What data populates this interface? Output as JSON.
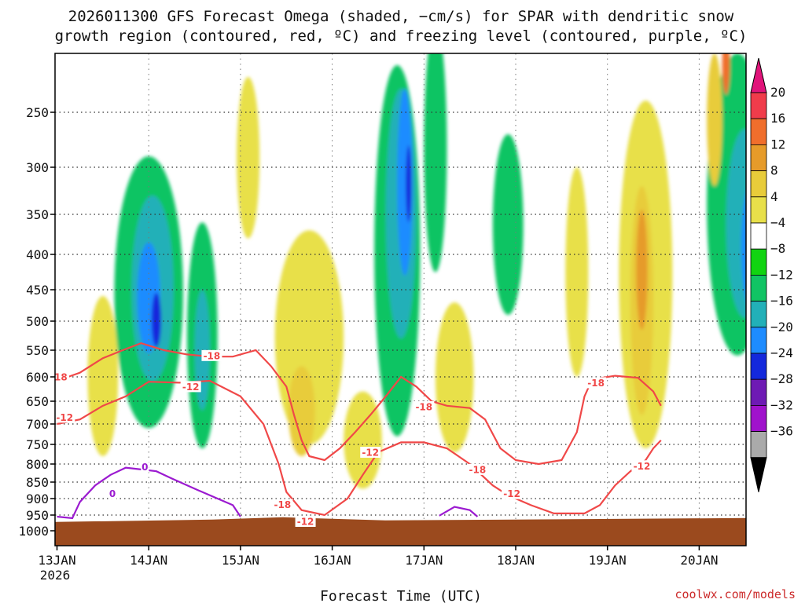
{
  "chart_data": {
    "type": "heatmap",
    "title_line1": "2026011300 GFS Forecast Omega (shaded, −cm/s) for SPAR with dendritic snow",
    "title_line2": "growth region (contoured, red, ºC) and freezing level (contoured, purple, ºC)",
    "xlabel": "Forecast Time (UTC)",
    "credit": "coolwx.com/models",
    "year_label": "2026",
    "x_ticks": [
      "13JAN",
      "14JAN",
      "15JAN",
      "16JAN",
      "17JAN",
      "18JAN",
      "19JAN",
      "20JAN"
    ],
    "x_range_hours": [
      0,
      180
    ],
    "y_ticks": [
      250,
      300,
      350,
      400,
      450,
      500,
      550,
      600,
      650,
      700,
      750,
      800,
      850,
      900,
      950,
      1000
    ],
    "y_range_hpa": [
      200,
      1020
    ],
    "ground_top_hpa": 962,
    "colorbar_levels": [
      20,
      16,
      12,
      8,
      4,
      -4,
      -8,
      -12,
      -16,
      -20,
      -24,
      -28,
      -32,
      -36
    ],
    "colorbar_colors": [
      "#f03c4b",
      "#f06e2c",
      "#e69b2a",
      "#e8cc3a",
      "#e8e04a",
      "#ffffff",
      "#11d411",
      "#11c464",
      "#22b0b8",
      "#1e8cff",
      "#1428dc",
      "#6e1ab4",
      "#a012cc",
      "#aaaaaa"
    ],
    "colorbar_top_arrow_color": "#e0147a",
    "colorbar_bottom_arrow_color": "#000000",
    "ground_color": "#9b4a1e",
    "dgz_color": "#f04848",
    "freezing_color": "#9b1ad0",
    "dgz_contour_labels": [
      {
        "text": "-18",
        "hour": 0.5,
        "hpa": 600
      },
      {
        "text": "-12",
        "hour": 2,
        "hpa": 685
      },
      {
        "text": "-18",
        "hour": 40.5,
        "hpa": 560
      },
      {
        "text": "-12",
        "hour": 35,
        "hpa": 620
      },
      {
        "text": "-18",
        "hour": 59,
        "hpa": 918
      },
      {
        "text": "-12",
        "hour": 65,
        "hpa": 970
      },
      {
        "text": "-18",
        "hour": 96,
        "hpa": 662
      },
      {
        "text": "-12",
        "hour": 82,
        "hpa": 770
      },
      {
        "text": "-18",
        "hour": 110,
        "hpa": 815
      },
      {
        "text": "-12",
        "hour": 119,
        "hpa": 885
      },
      {
        "text": "-18",
        "hour": 141,
        "hpa": 612
      },
      {
        "text": "-12",
        "hour": 153,
        "hpa": 805
      }
    ],
    "freezing_contour_labels": [
      {
        "text": "0",
        "hour": 23,
        "hpa": 808
      },
      {
        "text": "0",
        "hour": 14.5,
        "hpa": 885
      }
    ],
    "dgz_upper_line": [
      [
        0,
        608
      ],
      [
        6,
        592
      ],
      [
        12,
        565
      ],
      [
        18,
        548
      ],
      [
        22,
        538
      ],
      [
        28,
        550
      ],
      [
        34,
        558
      ],
      [
        40,
        562
      ],
      [
        46,
        562
      ],
      [
        52,
        550
      ],
      [
        56,
        580
      ],
      [
        60,
        620
      ],
      [
        62,
        680
      ],
      [
        64,
        740
      ],
      [
        66,
        780
      ],
      [
        70,
        790
      ],
      [
        74,
        760
      ],
      [
        78,
        720
      ],
      [
        82,
        680
      ],
      [
        86,
        640
      ],
      [
        90,
        600
      ],
      [
        94,
        620
      ],
      [
        98,
        650
      ],
      [
        102,
        660
      ],
      [
        108,
        665
      ],
      [
        112,
        690
      ],
      [
        116,
        760
      ],
      [
        120,
        790
      ],
      [
        126,
        800
      ],
      [
        132,
        790
      ],
      [
        136,
        720
      ],
      [
        138,
        640
      ],
      [
        140,
        605
      ],
      [
        146,
        598
      ],
      [
        152,
        602
      ],
      [
        156,
        630
      ],
      [
        158,
        660
      ]
    ],
    "dgz_lower_line": [
      [
        0,
        700
      ],
      [
        6,
        690
      ],
      [
        12,
        660
      ],
      [
        18,
        640
      ],
      [
        24,
        610
      ],
      [
        32,
        612
      ],
      [
        40,
        608
      ],
      [
        48,
        640
      ],
      [
        54,
        700
      ],
      [
        58,
        800
      ],
      [
        60,
        880
      ],
      [
        64,
        935
      ],
      [
        70,
        950
      ],
      [
        76,
        900
      ],
      [
        80,
        830
      ],
      [
        84,
        770
      ],
      [
        90,
        745
      ],
      [
        96,
        745
      ],
      [
        102,
        760
      ],
      [
        108,
        800
      ],
      [
        114,
        860
      ],
      [
        118,
        890
      ],
      [
        124,
        920
      ],
      [
        130,
        945
      ],
      [
        138,
        945
      ],
      [
        142,
        920
      ],
      [
        146,
        860
      ],
      [
        150,
        820
      ],
      [
        154,
        790
      ],
      [
        156,
        760
      ],
      [
        158,
        740
      ]
    ],
    "freezing_line": [
      [
        0,
        955
      ],
      [
        4,
        960
      ],
      [
        6,
        910
      ],
      [
        10,
        860
      ],
      [
        14,
        830
      ],
      [
        18,
        810
      ],
      [
        22,
        815
      ],
      [
        26,
        820
      ],
      [
        30,
        840
      ],
      [
        36,
        870
      ],
      [
        42,
        900
      ],
      [
        46,
        920
      ],
      [
        48,
        955
      ]
    ],
    "freezing_line2": [
      [
        100,
        952
      ],
      [
        104,
        925
      ],
      [
        108,
        935
      ],
      [
        110,
        955
      ]
    ],
    "omega_patches": [
      {
        "value": -8,
        "hour": 24,
        "hpa": 500,
        "dh": 18,
        "dp": 420
      },
      {
        "value": -12,
        "hour": 25,
        "hpa": 470,
        "dh": 11,
        "dp": 280
      },
      {
        "value": -16,
        "hour": 24,
        "hpa": 470,
        "dh": 6,
        "dp": 170
      },
      {
        "value": -20,
        "hour": 26,
        "hpa": 500,
        "dh": 2.5,
        "dp": 90
      },
      {
        "value": -8,
        "hour": 38,
        "hpa": 560,
        "dh": 8,
        "dp": 400
      },
      {
        "value": -12,
        "hour": 38,
        "hpa": 560,
        "dh": 4,
        "dp": 220
      },
      {
        "value": -8,
        "hour": 89,
        "hpa": 470,
        "dh": 12,
        "dp": 520
      },
      {
        "value": -12,
        "hour": 90,
        "hpa": 380,
        "dh": 8,
        "dp": 300
      },
      {
        "value": -16,
        "hour": 91,
        "hpa": 330,
        "dh": 4,
        "dp": 200
      },
      {
        "value": -20,
        "hour": 92,
        "hpa": 320,
        "dh": 1.5,
        "dp": 80
      },
      {
        "value": -8,
        "hour": 99,
        "hpa": 300,
        "dh": 6,
        "dp": 250
      },
      {
        "value": -8,
        "hour": 118,
        "hpa": 380,
        "dh": 8,
        "dp": 220
      },
      {
        "value": -8,
        "hour": 178,
        "hpa": 380,
        "dh": 16,
        "dp": 360
      },
      {
        "value": -12,
        "hour": 180,
        "hpa": 380,
        "dh": 10,
        "dp": 230
      },
      {
        "value": -16,
        "hour": 182,
        "hpa": 400,
        "dh": 6,
        "dp": 170
      },
      {
        "value": -20,
        "hour": 183,
        "hpa": 420,
        "dh": 2,
        "dp": 100
      },
      {
        "value": 4,
        "hour": 66,
        "hpa": 560,
        "dh": 18,
        "dp": 380
      },
      {
        "value": 8,
        "hour": 64,
        "hpa": 680,
        "dh": 7,
        "dp": 200
      },
      {
        "value": 4,
        "hour": 80,
        "hpa": 750,
        "dh": 10,
        "dp": 240
      },
      {
        "value": 4,
        "hour": 154,
        "hpa": 500,
        "dh": 14,
        "dp": 520
      },
      {
        "value": 8,
        "hour": 153,
        "hpa": 500,
        "dh": 6,
        "dp": 360
      },
      {
        "value": 12,
        "hour": 153,
        "hpa": 430,
        "dh": 3,
        "dp": 170
      },
      {
        "value": 8,
        "hour": 172,
        "hpa": 260,
        "dh": 4,
        "dp": 120
      },
      {
        "value": 16,
        "hour": 175,
        "hpa": 210,
        "dh": 2,
        "dp": 50
      },
      {
        "value": 4,
        "hour": 12,
        "hpa": 620,
        "dh": 8,
        "dp": 320
      },
      {
        "value": 4,
        "hour": 50,
        "hpa": 300,
        "dh": 6,
        "dp": 160
      },
      {
        "value": 4,
        "hour": 104,
        "hpa": 620,
        "dh": 10,
        "dp": 300
      },
      {
        "value": 4,
        "hour": 136,
        "hpa": 450,
        "dh": 6,
        "dp": 300
      }
    ]
  }
}
